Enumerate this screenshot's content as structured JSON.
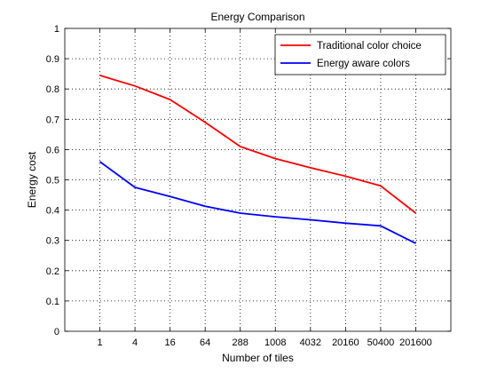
{
  "chart_data": {
    "type": "line",
    "title": "Energy Comparison",
    "xlabel": "Number of tiles",
    "ylabel": "Energy cost",
    "categories": [
      "1",
      "4",
      "16",
      "64",
      "288",
      "1008",
      "4032",
      "20160",
      "50400",
      "201600"
    ],
    "ylim": [
      0,
      1
    ],
    "yticks": [
      "0",
      "0.1",
      "0.2",
      "0.3",
      "0.4",
      "0.5",
      "0.6",
      "0.7",
      "0.8",
      "0.9",
      "1"
    ],
    "grid": true,
    "legend_position": "top-right",
    "series": [
      {
        "name": "Traditional color choice",
        "color": "#ff0000",
        "values": [
          0.845,
          0.81,
          0.765,
          0.69,
          0.61,
          0.57,
          0.54,
          0.512,
          0.48,
          0.39
        ]
      },
      {
        "name": "Energy aware colors",
        "color": "#0000ff",
        "values": [
          0.56,
          0.475,
          0.445,
          0.413,
          0.39,
          0.378,
          0.368,
          0.357,
          0.348,
          0.29
        ]
      }
    ]
  }
}
